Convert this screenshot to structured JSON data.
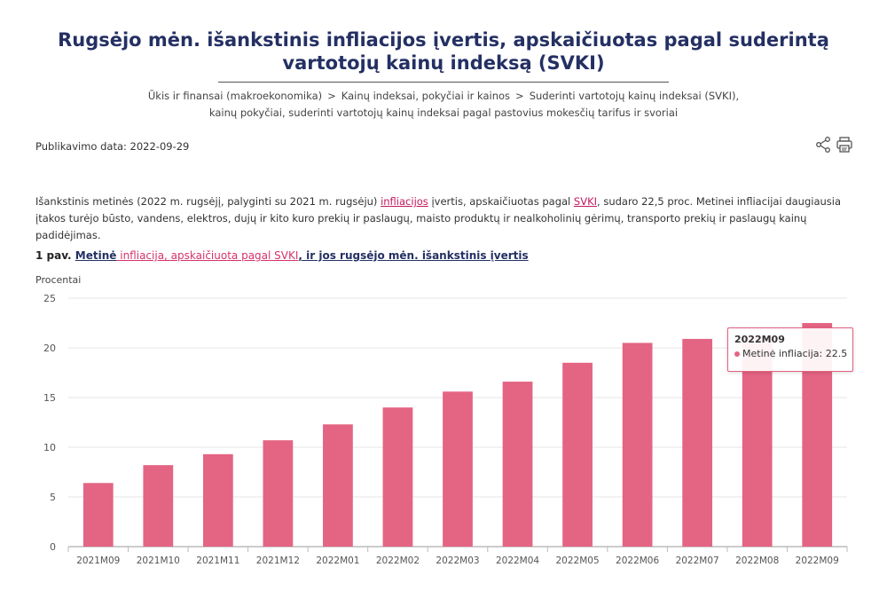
{
  "page": {
    "title": "Rugsėjo mėn. išankstinis infliacijos įvertis, apskaičiuotas pagal suderintą vartotojų kainų indeksą (SVKI)",
    "breadcrumb": [
      "Ūkis ir finansai (makroekonomika)",
      "Kainų indeksai, pokyčiai ir kainos",
      "Suderinti vartotojų kainų indeksai (SVKI), kainų pokyčiai, suderinti vartotojų kainų indeksai pagal pastovius mokesčių tarifus ir svoriai"
    ],
    "breadcrumb_separator": ">",
    "publication_date": "Publikavimo data: 2022-09-29",
    "tools": [
      "share-icon",
      "print-icon"
    ],
    "intro": {
      "part1": "Išankstinis metinės (2022 m. rugsėjį, palyginti su 2021 m. rugsėju) ",
      "link1": "infliacijos",
      "part2": " įvertis, apskaičiuotas pagal ",
      "link2": "SVKI",
      "part3": ", sudaro 22,5 proc. Metinei infliacijai daugiausia įtakos turėjo būsto, vandens, elektros, dujų ir kito kuro prekių ir paslaugų, maisto produktų ir nealkoholinių gėrimų, transporto prekių ir paslaugų kainų padidėjimas."
    },
    "figure": {
      "prefix": "1 pav. ",
      "link1": "Metinė",
      "link2": " infliacija, apskaičiuota pagal SVKI",
      "link3": ", ir jos rugsėjo mėn. išankstinis įvertis"
    }
  },
  "chart_data": {
    "type": "bar",
    "title": "",
    "ylabel": "Procentai",
    "xlabel": "",
    "ylim": [
      0,
      25
    ],
    "yticks": [
      0,
      5,
      10,
      15,
      20,
      25
    ],
    "grid": true,
    "bar_color": "#e46483",
    "categories": [
      "2021M09",
      "2021M10",
      "2021M11",
      "2021M12",
      "2022M01",
      "2022M02",
      "2022M03",
      "2022M04",
      "2022M05",
      "2022M06",
      "2022M07",
      "2022M08",
      "2022M09"
    ],
    "series": [
      {
        "name": "Metinė infliacija",
        "values": [
          6.4,
          8.2,
          9.3,
          10.7,
          12.3,
          14.0,
          15.6,
          16.6,
          18.5,
          20.5,
          20.9,
          21.1,
          22.5
        ]
      }
    ],
    "tooltip": {
      "category": "2022M09",
      "label": "Metinė infliacija: 22.5"
    }
  }
}
